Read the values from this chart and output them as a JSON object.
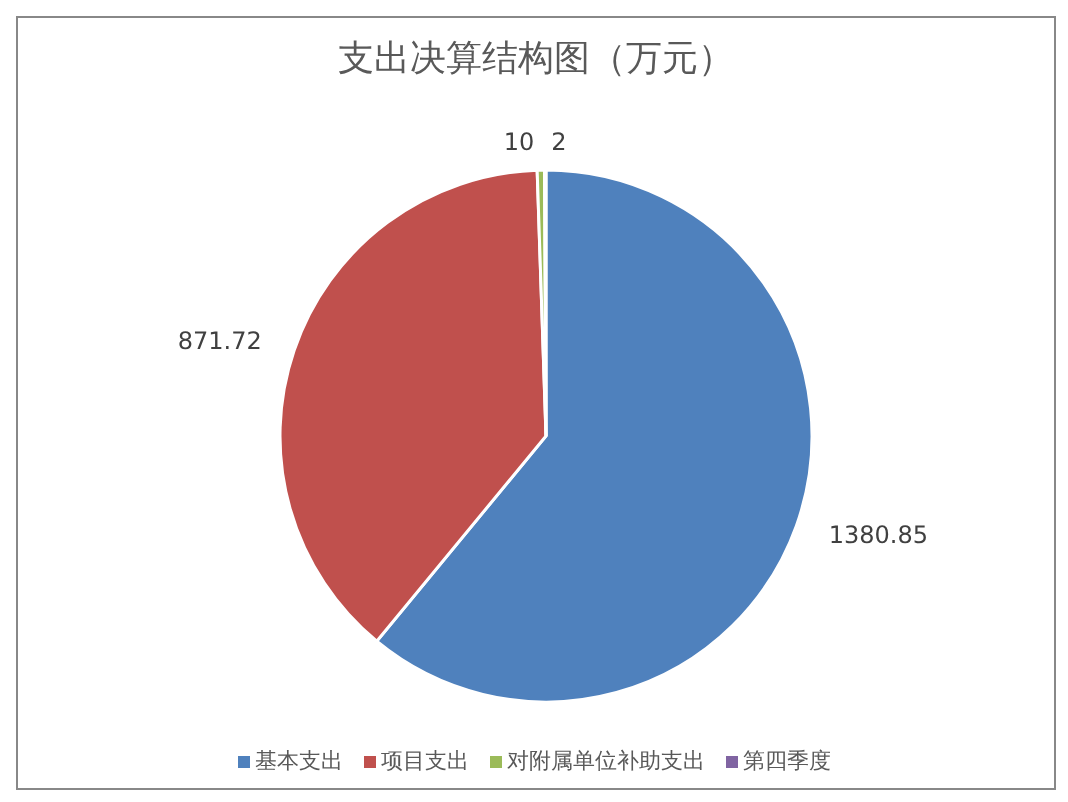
{
  "chart_data": {
    "type": "pie",
    "title": "支出决算结构图（万元）",
    "categories": [
      "基本支出",
      "项目支出",
      "对附属单位补助支出",
      "第四季度"
    ],
    "values": [
      1380.85,
      871.72,
      10,
      2
    ],
    "colors": [
      "#4f81bd",
      "#c0504d",
      "#9bbb59",
      "#8064a2"
    ],
    "data_labels": true,
    "legend": "bottom"
  }
}
